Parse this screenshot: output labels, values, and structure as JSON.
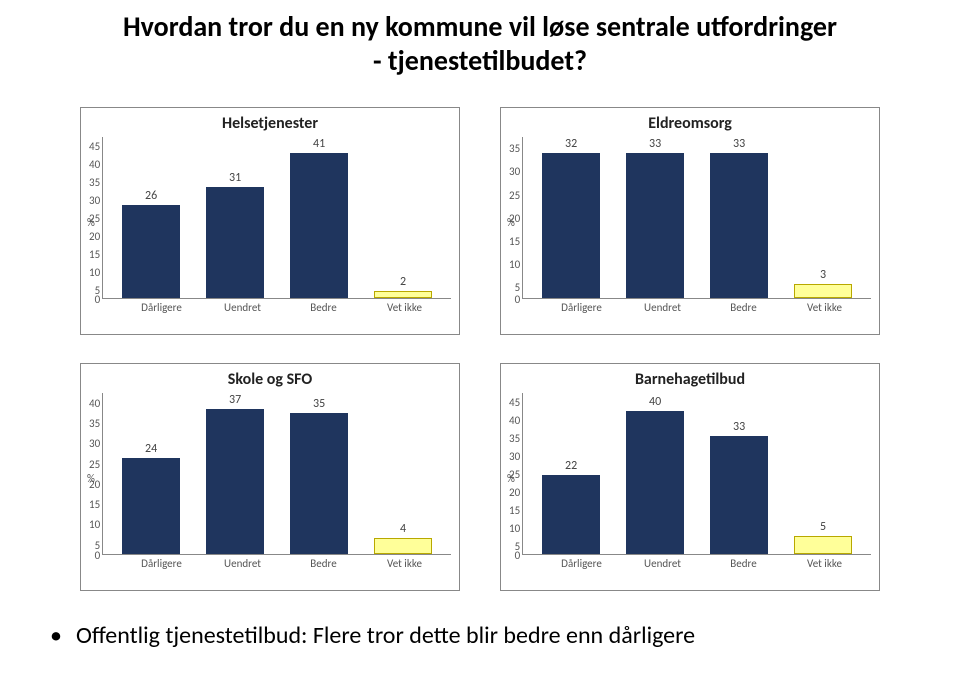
{
  "title_line1": "Hvordan tror du en ny kommune vil løse sentrale utfordringer",
  "title_line2": "- tjenestetilbudet?",
  "bullet": "Offentlig tjenestetilbud: Flere tror dette blir bedre enn dårligere",
  "y_label": "%",
  "x_categories": [
    "Dårligere",
    "Uendret",
    "Bedre",
    "Vet ikke"
  ],
  "colors": {
    "bar_blue_fill": "#1f355e",
    "bar_blue_border": "#1f355e",
    "bar_yellow_fill": "#ffff99",
    "bar_yellow_border": "#b8a800",
    "chart_border": "#888888",
    "axis": "#888888",
    "tick_text": "#595959",
    "background": "#ffffff"
  },
  "charts": [
    {
      "title": "Helsetjenester",
      "ymax": 45,
      "ystep": 5,
      "values": [
        26,
        31,
        41,
        2
      ],
      "series_colors": [
        "blue",
        "blue",
        "blue",
        "yellow"
      ]
    },
    {
      "title": "Eldreomsorg",
      "ymax": 35,
      "ystep": 5,
      "values": [
        32,
        33,
        33,
        3
      ],
      "series_colors": [
        "blue",
        "blue",
        "blue",
        "yellow"
      ]
    },
    {
      "title": "Skole og SFO",
      "ymax": 40,
      "ystep": 5,
      "values": [
        24,
        37,
        35,
        4
      ],
      "series_colors": [
        "blue",
        "blue",
        "blue",
        "yellow"
      ]
    },
    {
      "title": "Barnehagetilbud",
      "ymax": 45,
      "ystep": 5,
      "values": [
        22,
        40,
        33,
        5
      ],
      "series_colors": [
        "blue",
        "blue",
        "blue",
        "yellow"
      ]
    }
  ]
}
